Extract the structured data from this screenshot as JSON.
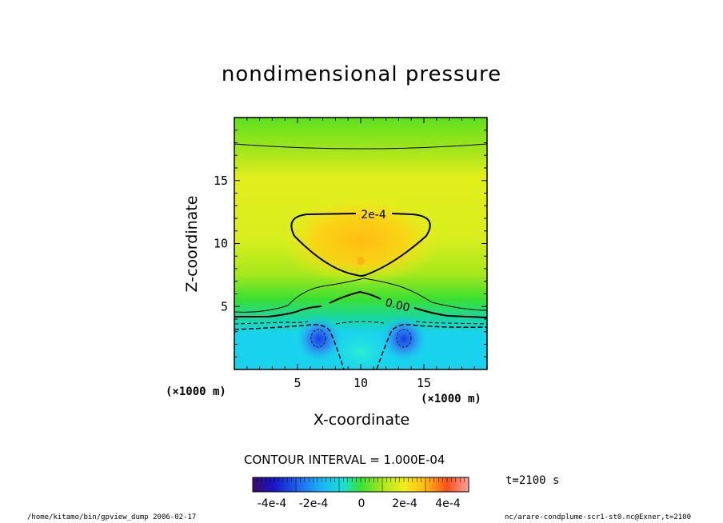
{
  "title": "nondimensional pressure",
  "footer": {
    "left": "/home/kitamo/bin/gpview_dump  2006-02-17",
    "right": "nc/arare-condplume-scr1-st0.nc@Exner,t=2100"
  },
  "time_label": "t=2100 s",
  "contour_interval": "CONTOUR INTERVAL = 1.000E-04",
  "colorbar": {
    "tick_labels": [
      "-4e-4",
      "-2e-4",
      "0",
      "2e-4",
      "4e-4"
    ],
    "range": [
      -0.0005,
      0.0005
    ]
  },
  "chart_data": {
    "type": "heatmap",
    "title": "nondimensional pressure",
    "xlabel": "X-coordinate",
    "ylabel": "Z-coordinate",
    "x_unit": "(×1000 m)",
    "z_unit": "(×1000 m)",
    "xlim": [
      0,
      20
    ],
    "ylim": [
      0,
      20
    ],
    "x_ticks": [
      5,
      10,
      15
    ],
    "y_ticks": [
      5,
      10,
      15
    ],
    "contour_labels": [
      "2e-4",
      "0.00"
    ],
    "approx_values": [
      {
        "x": 10,
        "z": 8.5,
        "value": 0.00028,
        "feature": "positive maximum"
      },
      {
        "x": 10,
        "z": 18,
        "value": 0.0001,
        "feature": "upper level"
      },
      {
        "x": 10,
        "z": 1,
        "value": -0.00012,
        "feature": "lower region"
      },
      {
        "x": 6.8,
        "z": 2.5,
        "value": -0.00032,
        "feature": "negative minimum (left)"
      },
      {
        "x": 13.4,
        "z": 2.5,
        "value": -0.00032,
        "feature": "negative minimum (right)"
      }
    ]
  }
}
